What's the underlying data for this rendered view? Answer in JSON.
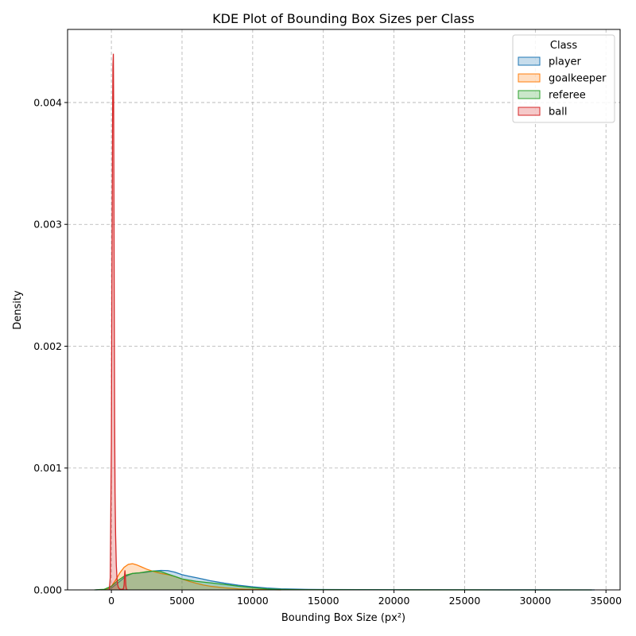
{
  "chart_data": {
    "type": "area",
    "subtype": "kde",
    "title": "KDE Plot of Bounding Box Sizes per Class",
    "xlabel": "Bounding Box Size (px²)",
    "ylabel": "Density",
    "xlim": [
      -3100,
      36000
    ],
    "ylim": [
      0,
      0.0046
    ],
    "xticks": [
      0,
      5000,
      10000,
      15000,
      20000,
      25000,
      30000,
      35000
    ],
    "xtick_labels": [
      "0",
      "5000",
      "10000",
      "15000",
      "20000",
      "25000",
      "30000",
      "35000"
    ],
    "yticks": [
      0,
      0.001,
      0.002,
      0.003,
      0.004
    ],
    "ytick_labels": [
      "0.000",
      "0.001",
      "0.002",
      "0.003",
      "0.004"
    ],
    "grid": true,
    "legend": {
      "title": "Class",
      "placement": "top-right"
    },
    "series": [
      {
        "name": "player",
        "color": "#1f77b4",
        "x": [
          -1100,
          -500,
          0,
          500,
          1000,
          1500,
          2000,
          2500,
          3000,
          3500,
          4000,
          4500,
          5000,
          5500,
          6000,
          6500,
          7000,
          8000,
          9000,
          10000,
          11000,
          12000,
          13000,
          14000,
          15000,
          20000,
          25000,
          30000,
          34200
        ],
        "y": [
          0,
          3e-06,
          1.5e-05,
          6e-05,
          0.00011,
          0.000135,
          0.00014,
          0.000145,
          0.000155,
          0.00016,
          0.000158,
          0.000145,
          0.000125,
          0.000112,
          0.0001,
          8.8e-05,
          7.5e-05,
          5.5e-05,
          3.8e-05,
          2.5e-05,
          1.5e-05,
          9e-06,
          6e-06,
          4e-06,
          3e-06,
          1.5e-06,
          8e-07,
          4e-07,
          0
        ]
      },
      {
        "name": "goalkeeper",
        "color": "#ff7f0e",
        "x": [
          -700,
          -300,
          0,
          300,
          600,
          900,
          1200,
          1500,
          1800,
          2100,
          2500,
          3000,
          3500,
          4000,
          4500,
          5000,
          5500,
          6000,
          6500,
          7000,
          8000,
          9000,
          10000,
          11000,
          12000
        ],
        "y": [
          0,
          8e-06,
          3e-05,
          8e-05,
          0.00014,
          0.000185,
          0.00021,
          0.000215,
          0.000205,
          0.00019,
          0.00017,
          0.00015,
          0.000135,
          0.000125,
          0.00011,
          9e-05,
          7e-05,
          5.5e-05,
          4e-05,
          3e-05,
          1.7e-05,
          8e-06,
          4e-06,
          2e-06,
          0
        ]
      },
      {
        "name": "referee",
        "color": "#2ca02c",
        "x": [
          -1200,
          -500,
          0,
          500,
          1000,
          1500,
          2000,
          2500,
          3000,
          3500,
          4000,
          4500,
          5000,
          5500,
          6000,
          7000,
          8000,
          9000,
          10000,
          11000,
          12000,
          13000,
          15000,
          20000,
          25000,
          30000,
          34000
        ],
        "y": [
          0,
          5e-06,
          3e-05,
          8e-05,
          0.00012,
          0.000135,
          0.00014,
          0.00015,
          0.000155,
          0.00015,
          0.00013,
          0.00011,
          9e-05,
          8e-05,
          7e-05,
          5.8e-05,
          4.5e-05,
          3e-05,
          1.8e-05,
          8e-06,
          4e-06,
          2e-06,
          1.2e-06,
          6e-07,
          3e-07,
          1e-07,
          0
        ]
      },
      {
        "name": "ball",
        "color": "#d62728",
        "x": [
          -150,
          -80,
          0,
          40,
          80,
          110,
          140,
          160,
          180,
          200,
          230,
          260,
          300,
          350,
          400,
          450,
          500,
          560,
          650,
          750,
          850,
          900,
          930,
          960,
          990,
          1020,
          1060,
          1120
        ],
        "y": [
          0,
          0.0001,
          0.0012,
          0.0026,
          0.0038,
          0.0043,
          0.0044,
          0.004,
          0.0033,
          0.0024,
          0.0014,
          0.0008,
          0.00045,
          0.0002,
          9e-05,
          4e-05,
          2e-05,
          1e-05,
          5e-06,
          5e-06,
          8e-06,
          4e-05,
          0.00012,
          0.00016,
          0.00011,
          4e-05,
          1e-05,
          0
        ]
      }
    ]
  }
}
